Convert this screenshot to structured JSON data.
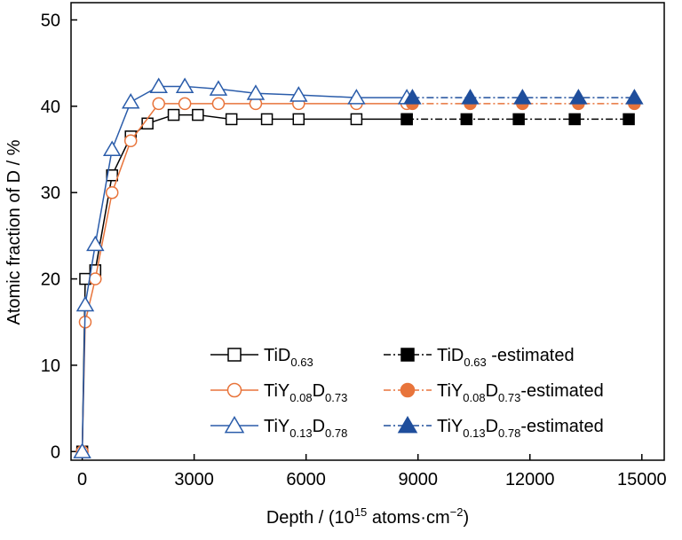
{
  "chart_data": {
    "type": "line",
    "title": "",
    "xlabel": "Depth / (10",
    "xlabel_sup": "15",
    "xlabel_tail": " atoms·cm",
    "xlabel_sup2": "−2",
    "xlabel_close": ")",
    "ylabel": "Atomic fraction of D / %",
    "xlim": [
      -300,
      15600
    ],
    "ylim": [
      -1,
      52
    ],
    "xticks": [
      0,
      3000,
      6000,
      9000,
      12000,
      15000
    ],
    "xtick_labels": [
      "0",
      "3000",
      "6000",
      "9000",
      "12000",
      "15000"
    ],
    "yticks": [
      0,
      10,
      20,
      30,
      40,
      50
    ],
    "ytick_labels": [
      "0",
      "10",
      "20",
      "30",
      "40",
      "50"
    ],
    "grid": false,
    "legend_position": "bottom-right",
    "series": [
      {
        "name": "TiD0.63",
        "name_parts": [
          "TiD",
          "0.63",
          ""
        ],
        "color": "#000000",
        "marker": "square",
        "filled": false,
        "dashed": false,
        "x": [
          0,
          80,
          350,
          800,
          1300,
          1750,
          2450,
          3100,
          4000,
          4950,
          5800,
          7350,
          8700
        ],
        "y": [
          0,
          20,
          21,
          32,
          36.5,
          38,
          39,
          39,
          38.5,
          38.5,
          38.5,
          38.5,
          38.5
        ]
      },
      {
        "name": "TiY0.08D0.73",
        "name_parts": [
          "TiY",
          "0.08",
          "D",
          "0.73",
          ""
        ],
        "color": "#e8743b",
        "marker": "circle",
        "filled": false,
        "dashed": false,
        "x": [
          0,
          80,
          350,
          800,
          1300,
          2050,
          2750,
          3650,
          4650,
          5800,
          7350,
          8700
        ],
        "y": [
          0,
          15,
          20,
          30,
          36,
          40.3,
          40.3,
          40.3,
          40.3,
          40.3,
          40.3,
          40.3
        ]
      },
      {
        "name": "TiY0.13D0.78",
        "name_parts": [
          "TiY",
          "0.13",
          "D",
          "0.78",
          ""
        ],
        "color": "#2a5caa",
        "marker": "triangle",
        "filled": false,
        "dashed": false,
        "x": [
          0,
          80,
          350,
          800,
          1300,
          2050,
          2750,
          3650,
          4650,
          5800,
          7350,
          8700
        ],
        "y": [
          0,
          17,
          24,
          35,
          40.5,
          42.3,
          42.3,
          42,
          41.5,
          41.3,
          41,
          41
        ]
      },
      {
        "name": "TiD0.63 -estimated",
        "name_parts": [
          "TiD",
          "0.63",
          " -estimated"
        ],
        "color": "#000000",
        "marker": "square",
        "filled": true,
        "dashed": true,
        "x": [
          8700,
          10300,
          11700,
          13200,
          14650
        ],
        "y": [
          38.5,
          38.5,
          38.5,
          38.5,
          38.5
        ]
      },
      {
        "name": "TiY0.08D0.73-estimated",
        "name_parts": [
          "TiY",
          "0.08",
          "D",
          "0.73",
          "-estimated"
        ],
        "color": "#e8743b",
        "marker": "circle",
        "filled": true,
        "dashed": true,
        "x": [
          8850,
          10400,
          11800,
          13300,
          14800
        ],
        "y": [
          40.3,
          40.3,
          40.3,
          40.3,
          40.3
        ]
      },
      {
        "name": "TiY0.13D0.78-estimated",
        "name_parts": [
          "TiY",
          "0.13",
          "D",
          "0.78",
          "-estimated"
        ],
        "color": "#1f4e9c",
        "marker": "triangle",
        "filled": true,
        "dashed": true,
        "x": [
          8850,
          10400,
          11800,
          13300,
          14800
        ],
        "y": [
          41,
          41,
          41,
          41,
          41
        ]
      }
    ]
  }
}
